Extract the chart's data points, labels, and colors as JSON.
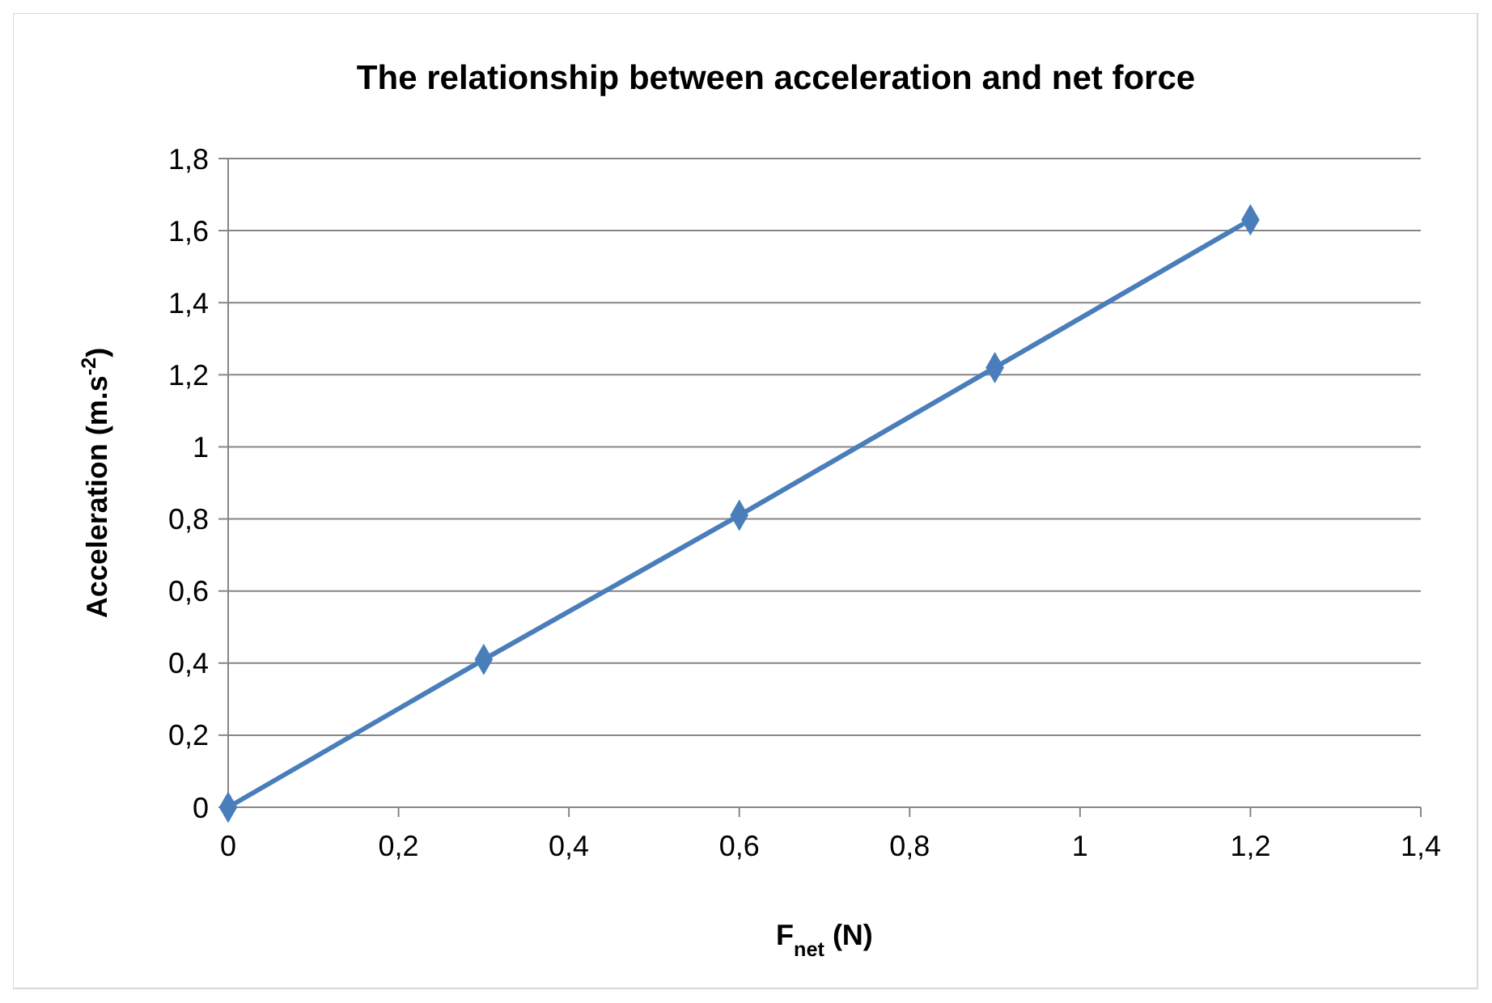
{
  "chart_data": {
    "type": "line",
    "title": "The relationship between acceleration and net force",
    "xlabel": "F$_{net}$ (N)",
    "ylabel": "Acceleration (m.s$^{-2}$)",
    "x": [
      0,
      0.3,
      0.6,
      0.9,
      1.2
    ],
    "series": [
      {
        "color": "#4a7ebb",
        "values": [
          0,
          0.41,
          0.81,
          1.22,
          1.63
        ]
      }
    ],
    "xlim": [
      0,
      1.4
    ],
    "xticks": [
      0,
      {
        "value": 0.2,
        "label": "0,2"
      },
      {
        "value": 0.4,
        "label": "0,4"
      },
      {
        "value": 0.6,
        "label": "0,6"
      },
      {
        "value": 0.8,
        "label": "0,8"
      },
      1,
      {
        "value": 1.2,
        "label": "1,2"
      },
      {
        "value": 1.4,
        "label": "1,4"
      }
    ],
    "ylim": [
      0,
      1.8
    ],
    "yticks": [
      0,
      {
        "value": 0.2,
        "label": "0,2"
      },
      {
        "value": 0.4,
        "label": "0,4"
      },
      {
        "value": 0.6,
        "label": "0,6"
      },
      {
        "value": 0.8,
        "label": "0,8"
      },
      1,
      {
        "value": 1.2,
        "label": "1,2"
      },
      {
        "value": 1.4,
        "label": "1,4"
      },
      {
        "value": 1.6,
        "label": "1,6"
      },
      {
        "value": 1.8,
        "label": "1,8"
      }
    ],
    "grid": "y",
    "marker": "diamond",
    "line_style": "solid"
  }
}
